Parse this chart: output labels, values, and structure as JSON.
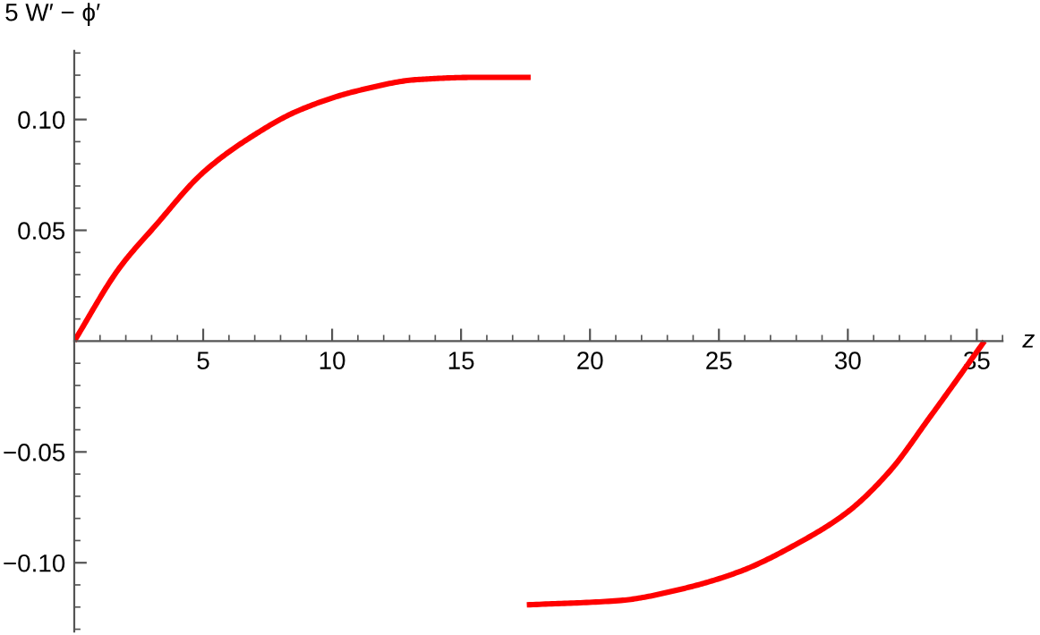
{
  "chart_data": {
    "type": "line",
    "ylabel": "5 W′ − ϕ′",
    "xlabel": "z",
    "xlim": [
      0,
      36
    ],
    "ylim": [
      -0.131,
      0.131
    ],
    "xticks": [
      {
        "value": 1,
        "label": null
      },
      {
        "value": 2,
        "label": null
      },
      {
        "value": 3,
        "label": null
      },
      {
        "value": 4,
        "label": null
      },
      5,
      {
        "value": 6,
        "label": null
      },
      {
        "value": 7,
        "label": null
      },
      {
        "value": 8,
        "label": null
      },
      {
        "value": 9,
        "label": null
      },
      10,
      {
        "value": 11,
        "label": null
      },
      {
        "value": 12,
        "label": null
      },
      {
        "value": 13,
        "label": null
      },
      {
        "value": 14,
        "label": null
      },
      15,
      {
        "value": 16,
        "label": null
      },
      {
        "value": 17,
        "label": null
      },
      {
        "value": 18,
        "label": null
      },
      {
        "value": 19,
        "label": null
      },
      20,
      {
        "value": 21,
        "label": null
      },
      {
        "value": 22,
        "label": null
      },
      {
        "value": 23,
        "label": null
      },
      {
        "value": 24,
        "label": null
      },
      25,
      {
        "value": 26,
        "label": null
      },
      {
        "value": 27,
        "label": null
      },
      {
        "value": 28,
        "label": null
      },
      {
        "value": 29,
        "label": null
      },
      30,
      {
        "value": 31,
        "label": null
      },
      {
        "value": 32,
        "label": null
      },
      {
        "value": 33,
        "label": null
      },
      {
        "value": 34,
        "label": null
      },
      35,
      {
        "value": 36,
        "label": null
      }
    ],
    "yticks": [
      {
        "value": -0.13,
        "label": null
      },
      {
        "value": -0.12,
        "label": null
      },
      {
        "value": -0.11,
        "label": null
      },
      {
        "value": -0.1,
        "label": "−0.10"
      },
      {
        "value": -0.09,
        "label": null
      },
      {
        "value": -0.08,
        "label": null
      },
      {
        "value": -0.07,
        "label": null
      },
      {
        "value": -0.06,
        "label": null
      },
      {
        "value": -0.05,
        "label": "−0.05"
      },
      {
        "value": -0.04,
        "label": null
      },
      {
        "value": -0.03,
        "label": null
      },
      {
        "value": -0.02,
        "label": null
      },
      {
        "value": -0.01,
        "label": null
      },
      {
        "value": 0.01,
        "label": null
      },
      {
        "value": 0.02,
        "label": null
      },
      {
        "value": 0.03,
        "label": null
      },
      {
        "value": 0.04,
        "label": null
      },
      {
        "value": 0.05,
        "label": "0.05"
      },
      {
        "value": 0.06,
        "label": null
      },
      {
        "value": 0.07,
        "label": null
      },
      {
        "value": 0.08,
        "label": null
      },
      {
        "value": 0.09,
        "label": null
      },
      {
        "value": 0.1,
        "label": "0.10"
      },
      {
        "value": 0.11,
        "label": null
      },
      {
        "value": 0.12,
        "label": null
      },
      {
        "value": 0.13,
        "label": null
      }
    ],
    "grid": false,
    "legend": false,
    "marker": "none",
    "line_style": "solid",
    "series": [
      {
        "color": "#ff0000",
        "x": [
          0,
          1.75,
          3.14,
          4.99,
          6.84,
          8.69,
          11.0,
          13.3,
          15.5,
          17.7
        ],
        "values": [
          0,
          0.033,
          0.052,
          0.076,
          0.092,
          0.104,
          0.113,
          0.118,
          0.119,
          0.119
        ]
      },
      {
        "color": "#ff0000",
        "x": [
          17.55,
          21.2,
          23.5,
          25.8,
          28.1,
          30.0,
          31.6,
          33.2,
          35.3
        ],
        "values": [
          -0.119,
          -0.117,
          -0.112,
          -0.104,
          -0.091,
          -0.077,
          -0.059,
          -0.034,
          0
        ]
      }
    ]
  }
}
